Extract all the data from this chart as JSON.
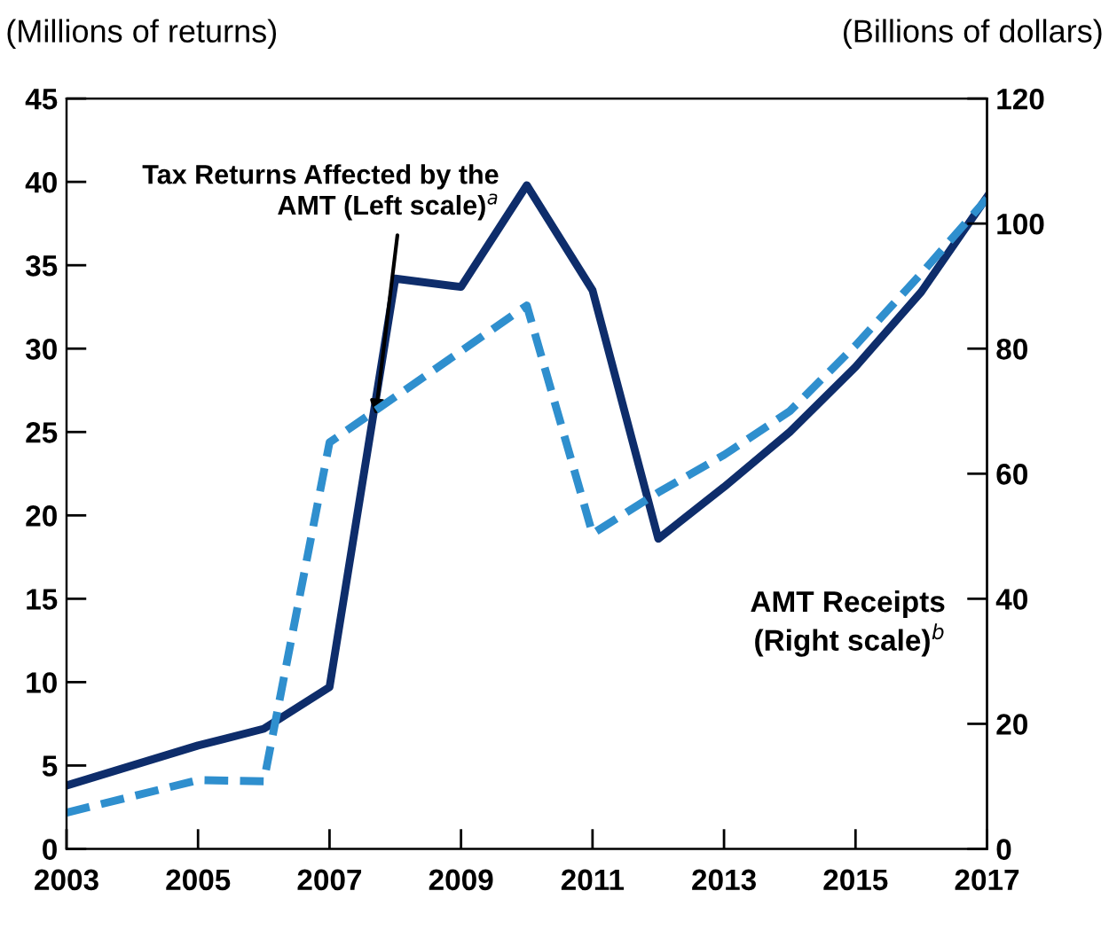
{
  "chart_data": {
    "type": "line",
    "ylabel": "(Millions of returns)",
    "y2label": "(Billions of dollars)",
    "x": [
      2003,
      2005,
      2006,
      2007,
      2008,
      2009,
      2010,
      2011,
      2012,
      2013,
      2014,
      2015,
      2016,
      2017
    ],
    "series": [
      {
        "color": "#0e2d6b",
        "line_style": "solid",
        "values": [
          3.8,
          6.2,
          7.2,
          9.7,
          34.2,
          33.7,
          39.8,
          33.5,
          18.6,
          21.7,
          25,
          28.9,
          33.4,
          39.1
        ]
      },
      {
        "color": "#2f8fce",
        "line_style": "dashed",
        "axis": "y2",
        "x": [
          2003,
          2005,
          2006,
          2007,
          2010,
          2011,
          2012,
          2013,
          2014,
          2015,
          2016,
          2017
        ],
        "values": [
          5.8,
          11,
          10.8,
          65,
          86.9,
          50.4,
          57,
          63,
          70,
          80.5,
          92,
          104
        ]
      }
    ],
    "xlim": [
      2003,
      2017
    ],
    "xticks": [
      2003,
      2005,
      2007,
      2009,
      2011,
      2013,
      2015,
      2017
    ],
    "ylim": [
      0,
      45
    ],
    "yticks": [
      0,
      5,
      10,
      15,
      20,
      25,
      30,
      35,
      40,
      45
    ],
    "y2lim": [
      0,
      120
    ],
    "y2ticks": [
      0,
      20,
      40,
      60,
      80,
      100,
      120
    ],
    "annotations": [
      {
        "text": "Tax Returns Affected by the\nAMT (Left scale)$^{a}$",
        "x": 2007.7,
        "y": 26
      },
      "AMT Receipts\n(Right scale)$^{b}$"
    ],
    "grid": false,
    "legend": false
  }
}
